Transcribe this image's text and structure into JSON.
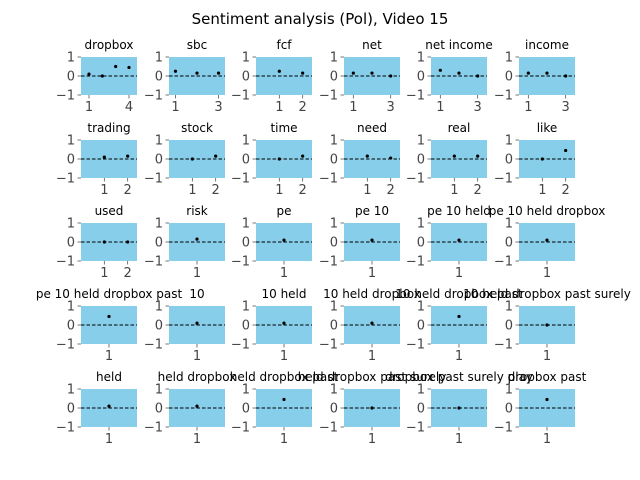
{
  "chart_data": {
    "type": "scatter",
    "title": "Sentiment analysis (Pol), Video 15",
    "colors": {
      "plot_bg": "#87ceeb",
      "marker": "#000000",
      "zero_line": "#000000",
      "tick": "#555555"
    },
    "ylim": [
      -1,
      1
    ],
    "yticks": [
      -1,
      0,
      1
    ],
    "zero_line_style": "dashed",
    "subplots": [
      {
        "title": "dropbox",
        "xlim": [
          0.4,
          4.6
        ],
        "xticks": [
          1,
          4
        ],
        "points": [
          [
            1,
            0.1
          ],
          [
            2,
            0.0
          ],
          [
            3,
            0.5
          ],
          [
            4,
            0.45
          ]
        ]
      },
      {
        "title": "sbc",
        "xlim": [
          0.7,
          3.3
        ],
        "xticks": [
          1,
          3
        ],
        "points": [
          [
            1,
            0.25
          ],
          [
            2,
            0.15
          ],
          [
            3,
            0.15
          ]
        ]
      },
      {
        "title": "fcf",
        "xlim": [
          0.0,
          2.4
        ],
        "xticks": [
          1,
          2
        ],
        "points": [
          [
            1,
            0.25
          ],
          [
            2,
            0.15
          ]
        ]
      },
      {
        "title": "net",
        "xlim": [
          0.5,
          3.5
        ],
        "xticks": [
          1,
          3
        ],
        "points": [
          [
            1,
            0.15
          ],
          [
            2,
            0.15
          ],
          [
            3,
            0.0
          ]
        ]
      },
      {
        "title": "net income",
        "xlim": [
          0.5,
          3.5
        ],
        "xticks": [
          1,
          3
        ],
        "points": [
          [
            1,
            0.3
          ],
          [
            2,
            0.15
          ],
          [
            3,
            0.0
          ]
        ]
      },
      {
        "title": "income",
        "xlim": [
          0.5,
          3.5
        ],
        "xticks": [
          1,
          3
        ],
        "points": [
          [
            1,
            0.15
          ],
          [
            2,
            0.15
          ],
          [
            3,
            0.0
          ]
        ]
      },
      {
        "title": "trading",
        "xlim": [
          0.0,
          2.4
        ],
        "xticks": [
          1,
          2
        ],
        "points": [
          [
            1,
            0.1
          ],
          [
            2,
            0.15
          ]
        ]
      },
      {
        "title": "stock",
        "xlim": [
          0.0,
          2.4
        ],
        "xticks": [
          1,
          2
        ],
        "points": [
          [
            1,
            0.0
          ],
          [
            2,
            0.15
          ]
        ]
      },
      {
        "title": "time",
        "xlim": [
          0.0,
          2.4
        ],
        "xticks": [
          1,
          2
        ],
        "points": [
          [
            1,
            0.0
          ],
          [
            2,
            0.15
          ]
        ]
      },
      {
        "title": "need",
        "xlim": [
          0.0,
          2.4
        ],
        "xticks": [
          1,
          2
        ],
        "points": [
          [
            1,
            0.15
          ],
          [
            2,
            0.05
          ]
        ]
      },
      {
        "title": "real",
        "xlim": [
          0.0,
          2.4
        ],
        "xticks": [
          1,
          2
        ],
        "points": [
          [
            1,
            0.15
          ],
          [
            2,
            0.15
          ]
        ]
      },
      {
        "title": "like",
        "xlim": [
          0.0,
          2.4
        ],
        "xticks": [
          1,
          2
        ],
        "points": [
          [
            1,
            0.0
          ],
          [
            2,
            0.45
          ]
        ]
      },
      {
        "title": "used",
        "xlim": [
          0.0,
          2.4
        ],
        "xticks": [
          1,
          2
        ],
        "points": [
          [
            1,
            0.0
          ],
          [
            2,
            0.0
          ]
        ]
      },
      {
        "title": "risk",
        "xlim": [
          0.0,
          2.0
        ],
        "xticks": [
          1
        ],
        "points": [
          [
            1,
            0.15
          ]
        ]
      },
      {
        "title": "pe",
        "xlim": [
          0.0,
          2.0
        ],
        "xticks": [
          1
        ],
        "points": [
          [
            1,
            0.1
          ]
        ]
      },
      {
        "title": "pe 10",
        "xlim": [
          0.0,
          2.0
        ],
        "xticks": [
          1
        ],
        "points": [
          [
            1,
            0.1
          ]
        ]
      },
      {
        "title": "pe 10 held",
        "xlim": [
          0.0,
          2.0
        ],
        "xticks": [
          1
        ],
        "points": [
          [
            1,
            0.1
          ]
        ]
      },
      {
        "title": "pe 10 held dropbox",
        "xlim": [
          0.0,
          2.0
        ],
        "xticks": [
          1
        ],
        "points": [
          [
            1,
            0.1
          ]
        ]
      },
      {
        "title": "pe 10 held dropbox past",
        "xlim": [
          0.0,
          2.0
        ],
        "xticks": [
          1
        ],
        "points": [
          [
            1,
            0.45
          ]
        ]
      },
      {
        "title": "10",
        "xlim": [
          0.0,
          2.0
        ],
        "xticks": [
          1
        ],
        "points": [
          [
            1,
            0.1
          ]
        ]
      },
      {
        "title": "10 held",
        "xlim": [
          0.0,
          2.0
        ],
        "xticks": [
          1
        ],
        "points": [
          [
            1,
            0.1
          ]
        ]
      },
      {
        "title": "10 held dropbox",
        "xlim": [
          0.0,
          2.0
        ],
        "xticks": [
          1
        ],
        "points": [
          [
            1,
            0.1
          ]
        ]
      },
      {
        "title": "10 held dropbox past",
        "xlim": [
          0.0,
          2.0
        ],
        "xticks": [
          1
        ],
        "points": [
          [
            1,
            0.45
          ]
        ]
      },
      {
        "title": "10 held dropbox past surely",
        "xlim": [
          0.0,
          2.0
        ],
        "xticks": [
          1
        ],
        "points": [
          [
            1,
            0.0
          ]
        ]
      },
      {
        "title": "held",
        "xlim": [
          0.0,
          2.0
        ],
        "xticks": [
          1
        ],
        "points": [
          [
            1,
            0.1
          ]
        ]
      },
      {
        "title": "held dropbox",
        "xlim": [
          0.0,
          2.0
        ],
        "xticks": [
          1
        ],
        "points": [
          [
            1,
            0.1
          ]
        ]
      },
      {
        "title": "held dropbox past",
        "xlim": [
          0.0,
          2.0
        ],
        "xticks": [
          1
        ],
        "points": [
          [
            1,
            0.45
          ]
        ]
      },
      {
        "title": "held dropbox past surely",
        "xlim": [
          0.0,
          2.0
        ],
        "xticks": [
          1
        ],
        "points": [
          [
            1,
            0.0
          ]
        ]
      },
      {
        "title": "dropbox past surely play",
        "xlim": [
          0.0,
          2.0
        ],
        "xticks": [
          1
        ],
        "points": [
          [
            1,
            0.0
          ]
        ]
      },
      {
        "title": "dropbox past",
        "xlim": [
          0.0,
          2.0
        ],
        "xticks": [
          1
        ],
        "points": [
          [
            1,
            0.45
          ]
        ]
      }
    ]
  }
}
